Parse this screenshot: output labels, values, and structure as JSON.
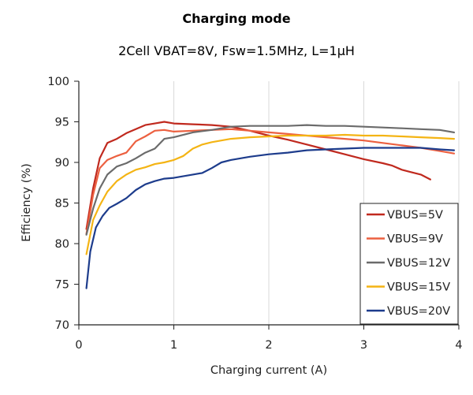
{
  "chart_data": {
    "type": "line",
    "title": "Charging mode",
    "subtitle": "2Cell VBAT=8V, Fsw=1.5MHz, L=1µH",
    "xlabel": "Charging current (A)",
    "ylabel": "Efficiency (%)",
    "xlim": [
      0,
      4
    ],
    "ylim": [
      70,
      100
    ],
    "x_ticks": [
      "0",
      "1",
      "2",
      "3",
      "4"
    ],
    "y_ticks": [
      "70",
      "75",
      "80",
      "85",
      "90",
      "95",
      "100"
    ],
    "grid": "vertical",
    "legend_position": "bottom-right",
    "series": [
      {
        "name": "VBUS=5V",
        "color": "#c0291e",
        "points": [
          [
            0.08,
            81.8
          ],
          [
            0.15,
            86.8
          ],
          [
            0.22,
            90.5
          ],
          [
            0.3,
            92.4
          ],
          [
            0.4,
            92.9
          ],
          [
            0.5,
            93.6
          ],
          [
            0.6,
            94.1
          ],
          [
            0.7,
            94.6
          ],
          [
            0.8,
            94.8
          ],
          [
            0.9,
            95.0
          ],
          [
            1.0,
            94.8
          ],
          [
            1.2,
            94.7
          ],
          [
            1.4,
            94.6
          ],
          [
            1.6,
            94.4
          ],
          [
            1.8,
            93.9
          ],
          [
            2.0,
            93.3
          ],
          [
            2.2,
            92.8
          ],
          [
            2.4,
            92.2
          ],
          [
            2.6,
            91.6
          ],
          [
            2.8,
            91.0
          ],
          [
            3.0,
            90.4
          ],
          [
            3.2,
            89.9
          ],
          [
            3.3,
            89.6
          ],
          [
            3.4,
            89.1
          ],
          [
            3.5,
            88.8
          ],
          [
            3.6,
            88.5
          ],
          [
            3.7,
            87.9
          ]
        ]
      },
      {
        "name": "VBUS=9V",
        "color": "#ec6040",
        "points": [
          [
            0.08,
            81.2
          ],
          [
            0.15,
            86.0
          ],
          [
            0.22,
            89.3
          ],
          [
            0.3,
            90.3
          ],
          [
            0.4,
            90.8
          ],
          [
            0.5,
            91.2
          ],
          [
            0.6,
            92.6
          ],
          [
            0.7,
            93.2
          ],
          [
            0.8,
            93.9
          ],
          [
            0.9,
            94.0
          ],
          [
            1.0,
            93.8
          ],
          [
            1.2,
            93.9
          ],
          [
            1.4,
            94.0
          ],
          [
            1.6,
            94.1
          ],
          [
            1.8,
            93.9
          ],
          [
            2.0,
            93.7
          ],
          [
            2.2,
            93.5
          ],
          [
            2.4,
            93.3
          ],
          [
            2.6,
            93.1
          ],
          [
            2.8,
            92.9
          ],
          [
            3.0,
            92.7
          ],
          [
            3.2,
            92.4
          ],
          [
            3.4,
            92.1
          ],
          [
            3.6,
            91.8
          ],
          [
            3.8,
            91.4
          ],
          [
            3.95,
            91.1
          ]
        ]
      },
      {
        "name": "VBUS=12V",
        "color": "#6b6b6b",
        "points": [
          [
            0.08,
            81.1
          ],
          [
            0.15,
            84.3
          ],
          [
            0.22,
            86.8
          ],
          [
            0.3,
            88.5
          ],
          [
            0.4,
            89.5
          ],
          [
            0.5,
            89.9
          ],
          [
            0.6,
            90.5
          ],
          [
            0.7,
            91.2
          ],
          [
            0.8,
            91.7
          ],
          [
            0.9,
            92.9
          ],
          [
            1.0,
            93.1
          ],
          [
            1.2,
            93.7
          ],
          [
            1.4,
            94.0
          ],
          [
            1.6,
            94.4
          ],
          [
            1.8,
            94.5
          ],
          [
            2.0,
            94.5
          ],
          [
            2.2,
            94.5
          ],
          [
            2.4,
            94.6
          ],
          [
            2.6,
            94.5
          ],
          [
            2.8,
            94.5
          ],
          [
            3.0,
            94.4
          ],
          [
            3.2,
            94.3
          ],
          [
            3.4,
            94.2
          ],
          [
            3.6,
            94.1
          ],
          [
            3.8,
            94.0
          ],
          [
            3.95,
            93.7
          ]
        ]
      },
      {
        "name": "VBUS=15V",
        "color": "#f4b414",
        "points": [
          [
            0.08,
            78.7
          ],
          [
            0.15,
            82.9
          ],
          [
            0.22,
            84.7
          ],
          [
            0.3,
            86.4
          ],
          [
            0.4,
            87.7
          ],
          [
            0.5,
            88.5
          ],
          [
            0.6,
            89.1
          ],
          [
            0.7,
            89.4
          ],
          [
            0.8,
            89.8
          ],
          [
            0.9,
            90.0
          ],
          [
            1.0,
            90.3
          ],
          [
            1.1,
            90.8
          ],
          [
            1.2,
            91.7
          ],
          [
            1.3,
            92.2
          ],
          [
            1.4,
            92.5
          ],
          [
            1.6,
            92.9
          ],
          [
            1.8,
            93.1
          ],
          [
            2.0,
            93.2
          ],
          [
            2.2,
            93.3
          ],
          [
            2.4,
            93.3
          ],
          [
            2.6,
            93.3
          ],
          [
            2.8,
            93.4
          ],
          [
            3.0,
            93.3
          ],
          [
            3.2,
            93.3
          ],
          [
            3.4,
            93.2
          ],
          [
            3.6,
            93.1
          ],
          [
            3.8,
            93.0
          ],
          [
            3.95,
            92.9
          ]
        ]
      },
      {
        "name": "VBUS=20V",
        "color": "#1d3c8c",
        "points": [
          [
            0.08,
            74.5
          ],
          [
            0.12,
            79.0
          ],
          [
            0.18,
            82.0
          ],
          [
            0.25,
            83.4
          ],
          [
            0.32,
            84.4
          ],
          [
            0.4,
            84.9
          ],
          [
            0.5,
            85.6
          ],
          [
            0.6,
            86.6
          ],
          [
            0.7,
            87.3
          ],
          [
            0.8,
            87.7
          ],
          [
            0.9,
            88.0
          ],
          [
            1.0,
            88.1
          ],
          [
            1.2,
            88.5
          ],
          [
            1.3,
            88.7
          ],
          [
            1.4,
            89.3
          ],
          [
            1.5,
            90.0
          ],
          [
            1.6,
            90.3
          ],
          [
            1.8,
            90.7
          ],
          [
            2.0,
            91.0
          ],
          [
            2.2,
            91.2
          ],
          [
            2.4,
            91.5
          ],
          [
            2.6,
            91.6
          ],
          [
            2.8,
            91.7
          ],
          [
            3.0,
            91.8
          ],
          [
            3.2,
            91.8
          ],
          [
            3.4,
            91.8
          ],
          [
            3.6,
            91.8
          ],
          [
            3.8,
            91.6
          ],
          [
            3.95,
            91.5
          ]
        ]
      }
    ]
  }
}
